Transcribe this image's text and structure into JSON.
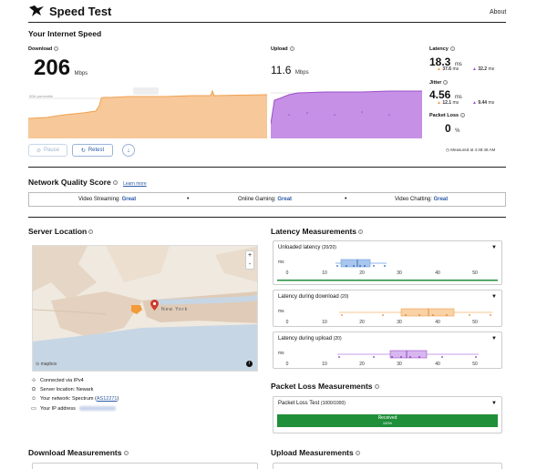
{
  "header": {
    "brand": "Speed Test",
    "about_label": "About"
  },
  "speed": {
    "section_title": "Your Internet Speed",
    "download": {
      "label": "Download",
      "value": "206",
      "unit": "Mbps"
    },
    "upload": {
      "label": "Upload",
      "value": "11.6",
      "unit": "Mbps"
    },
    "latency": {
      "label": "Latency",
      "value": "18.3",
      "unit": "ms",
      "down_value": "37.6",
      "up_value": "32.2",
      "sub_unit": "ms"
    },
    "jitter": {
      "label": "Jitter",
      "value": "4.56",
      "unit": "ms",
      "down_value": "12.1",
      "up_value": "9.44",
      "sub_unit": "ms"
    },
    "packet_loss": {
      "label": "Packet Loss",
      "value": "0",
      "unit": "%"
    },
    "measured_at": "Measured at 4:48:48 AM",
    "chart_label": "90th percentile",
    "pause_label": "Pause",
    "retest_label": "Retest"
  },
  "quality": {
    "title": "Network Quality Score",
    "learn_more": "Learn more",
    "items": [
      {
        "label": "Video Streaming:",
        "value": "Great"
      },
      {
        "label": "Online Gaming:",
        "value": "Great"
      },
      {
        "label": "Video Chatting:",
        "value": "Great"
      }
    ]
  },
  "server": {
    "title": "Server Location",
    "map_city_label": "New York",
    "map_attribution": "mapbox",
    "connected_via": "Connected via IPv4",
    "server_location": "Server location: Newark",
    "network_label": "Your network: Spectrum (",
    "network_asn": "AS12271",
    "network_close": ")",
    "ip_label": "Your IP address",
    "zoom_in": "+",
    "zoom_out": "-",
    "info_icon": "i"
  },
  "latency_measurements": {
    "title": "Latency Measurements",
    "axis_unit": "ms",
    "ticks": [
      "0",
      "10",
      "20",
      "30",
      "40",
      "50"
    ],
    "panels": [
      {
        "title": "Unloaded latency",
        "count": "(20/20)"
      },
      {
        "title": "Latency during download",
        "count": "(20)"
      },
      {
        "title": "Latency during upload",
        "count": "(20)"
      }
    ]
  },
  "packet_loss_measurements": {
    "title": "Packet Loss Measurements",
    "panel_title": "Packet Loss Test",
    "panel_count": "(1000/1000)",
    "bar_label": "Received",
    "bar_pct": "100%",
    "received_fraction": 1.0
  },
  "download_measurements": {
    "title": "Download Measurements"
  },
  "upload_measurements": {
    "title": "Upload Measurements"
  },
  "colors": {
    "download": "#f0a050",
    "upload": "#9b4fc8",
    "unloaded": "#6c9ee0",
    "during_download": "#f5b36b",
    "during_upload": "#b77fe0",
    "received": "#1f8f3a",
    "link": "#2a5aa8"
  }
}
